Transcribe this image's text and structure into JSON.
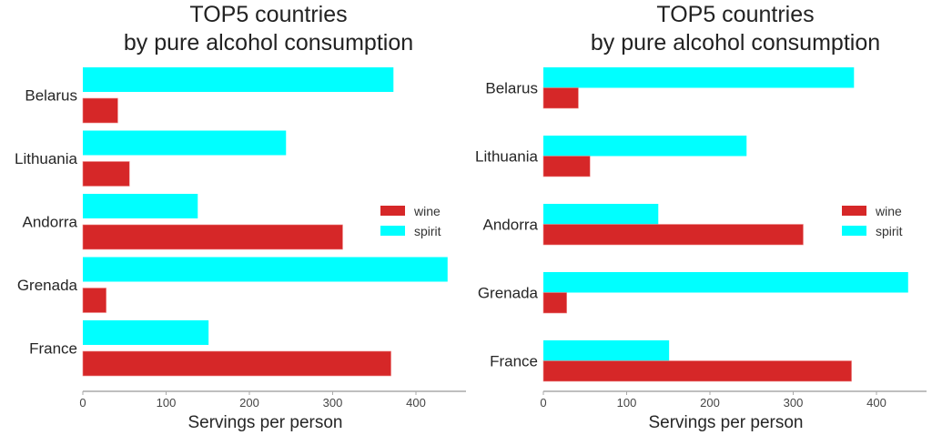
{
  "chart_data": [
    {
      "type": "bar",
      "orientation": "horizontal",
      "title": "TOP5 countries\nby pure alcohol consumption",
      "title_lines": [
        "TOP5 countries",
        "by pure alcohol consumption"
      ],
      "categories": [
        "Belarus",
        "Lithuania",
        "Andorra",
        "Grenada",
        "France"
      ],
      "series": [
        {
          "name": "wine",
          "color": "#d62728",
          "values": [
            42,
            56,
            312,
            28,
            370
          ]
        },
        {
          "name": "spirit",
          "color": "#00ffff",
          "values": [
            373,
            244,
            138,
            438,
            151
          ]
        }
      ],
      "xlabel": "Servings per person",
      "xticks": [
        0,
        100,
        200,
        300,
        400
      ],
      "xlim": [
        0,
        460
      ],
      "grid": false,
      "legend": "right"
    },
    {
      "type": "bar",
      "orientation": "horizontal",
      "title": "TOP5 countries\nby pure alcohol consumption",
      "title_lines": [
        "TOP5 countries",
        "by pure alcohol consumption"
      ],
      "categories": [
        "Belarus",
        "Lithuania",
        "Andorra",
        "Grenada",
        "France"
      ],
      "series": [
        {
          "name": "wine",
          "color": "#d62728",
          "values": [
            42,
            56,
            312,
            28,
            370
          ]
        },
        {
          "name": "spirit",
          "color": "#00ffff",
          "values": [
            373,
            244,
            138,
            438,
            151
          ]
        }
      ],
      "xlabel": "Servings per person",
      "xticks": [
        0,
        100,
        200,
        300,
        400
      ],
      "xlim": [
        0,
        460
      ],
      "grid": false,
      "legend": "right"
    }
  ]
}
